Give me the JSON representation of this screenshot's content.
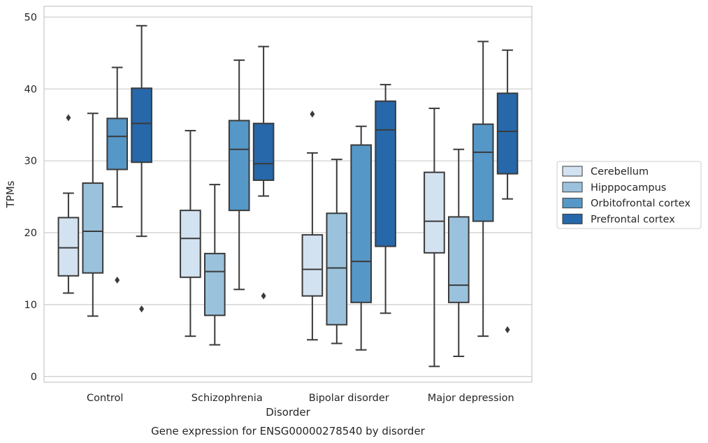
{
  "chart_data": {
    "type": "boxplot",
    "xlabel": "Disorder",
    "ylabel": "TPMs",
    "caption": "Gene expression for ENSG00000278540 by disorder",
    "ylim": [
      -0.8,
      51.5
    ],
    "yticks": [
      0,
      10,
      20,
      30,
      40,
      50
    ],
    "grid": "horizontal",
    "legend_position": "right",
    "categories": [
      "Control",
      "Schizophrenia",
      "Bipolar disorder",
      "Major depression"
    ],
    "series": [
      {
        "name": "Cerebellum",
        "color": "#d3e2f1",
        "boxes": [
          {
            "whislo": 11.6,
            "q1": 14.0,
            "med": 17.9,
            "q3": 22.1,
            "whishi": 25.5,
            "fliers": [
              36.0
            ]
          },
          {
            "whislo": 5.6,
            "q1": 13.8,
            "med": 19.2,
            "q3": 23.1,
            "whishi": 34.2,
            "fliers": []
          },
          {
            "whislo": 5.1,
            "q1": 11.2,
            "med": 14.9,
            "q3": 19.7,
            "whishi": 31.1,
            "fliers": [
              36.5
            ]
          },
          {
            "whislo": 1.4,
            "q1": 17.2,
            "med": 21.6,
            "q3": 28.4,
            "whishi": 37.3,
            "fliers": []
          }
        ]
      },
      {
        "name": "Hipppocampus",
        "color": "#9ac2dd",
        "boxes": [
          {
            "whislo": 8.4,
            "q1": 14.4,
            "med": 20.2,
            "q3": 26.9,
            "whishi": 36.6,
            "fliers": []
          },
          {
            "whislo": 4.4,
            "q1": 8.5,
            "med": 14.6,
            "q3": 17.1,
            "whishi": 26.7,
            "fliers": []
          },
          {
            "whislo": 4.6,
            "q1": 7.2,
            "med": 15.1,
            "q3": 22.7,
            "whishi": 30.2,
            "fliers": []
          },
          {
            "whislo": 2.8,
            "q1": 10.3,
            "med": 12.7,
            "q3": 22.2,
            "whishi": 31.6,
            "fliers": []
          }
        ]
      },
      {
        "name": "Orbitofrontal cortex",
        "color": "#5597c7",
        "boxes": [
          {
            "whislo": 23.6,
            "q1": 28.8,
            "med": 33.4,
            "q3": 35.9,
            "whishi": 43.0,
            "fliers": [
              13.4
            ]
          },
          {
            "whislo": 12.1,
            "q1": 23.1,
            "med": 31.6,
            "q3": 35.6,
            "whishi": 44.0,
            "fliers": []
          },
          {
            "whislo": 3.7,
            "q1": 10.3,
            "med": 16.0,
            "q3": 32.2,
            "whishi": 34.8,
            "fliers": []
          },
          {
            "whislo": 5.6,
            "q1": 21.6,
            "med": 31.2,
            "q3": 35.1,
            "whishi": 46.6,
            "fliers": []
          }
        ]
      },
      {
        "name": "Prefrontal cortex",
        "color": "#2668aa",
        "boxes": [
          {
            "whislo": 19.5,
            "q1": 29.8,
            "med": 35.2,
            "q3": 40.1,
            "whishi": 48.8,
            "fliers": [
              9.4
            ]
          },
          {
            "whislo": 25.1,
            "q1": 27.3,
            "med": 29.6,
            "q3": 35.2,
            "whishi": 45.9,
            "fliers": [
              11.2
            ]
          },
          {
            "whislo": 8.8,
            "q1": 18.1,
            "med": 34.3,
            "q3": 38.3,
            "whishi": 40.6,
            "fliers": []
          },
          {
            "whislo": 24.7,
            "q1": 28.2,
            "med": 34.1,
            "q3": 39.4,
            "whishi": 45.4,
            "fliers": [
              6.5
            ]
          }
        ]
      }
    ]
  }
}
